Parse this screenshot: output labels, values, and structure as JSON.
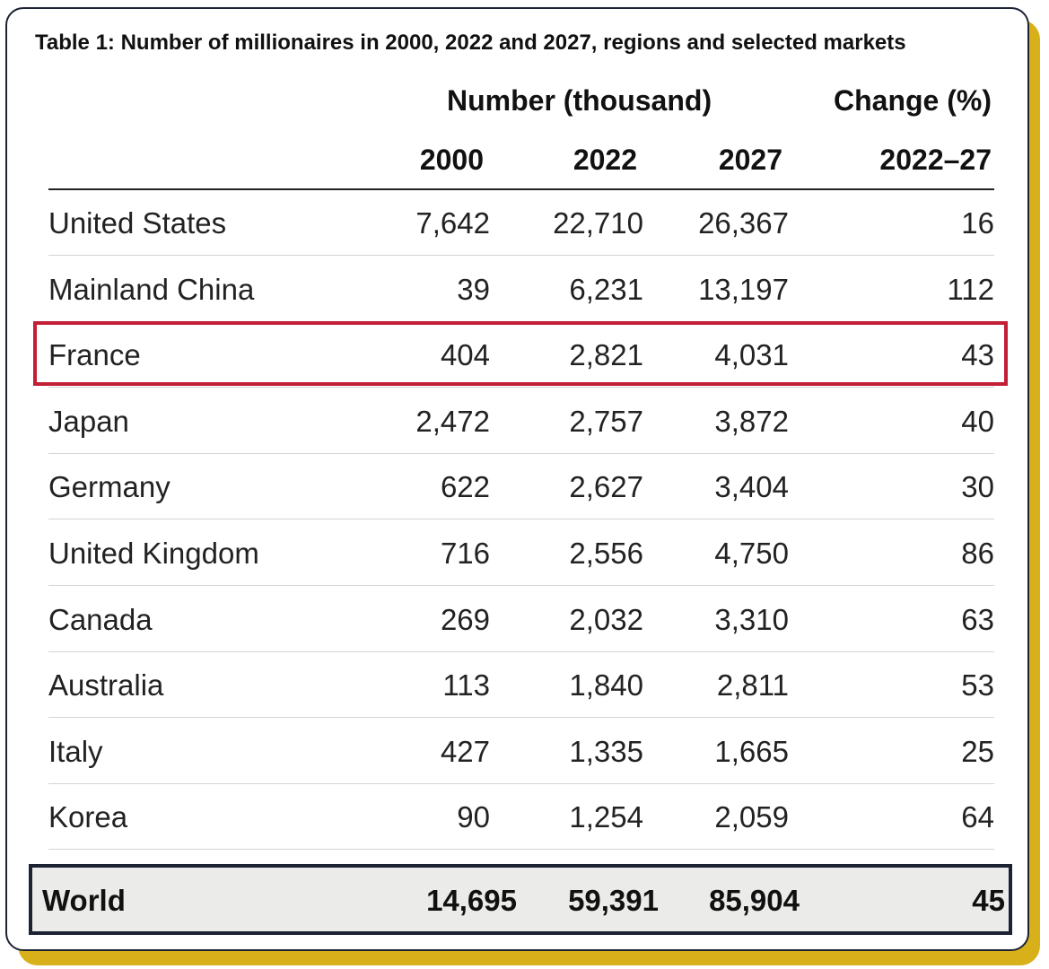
{
  "title": "Table 1: Number of millionaires in 2000, 2022 and 2027, regions and selected markets",
  "headers": {
    "group_number": "Number (thousand)",
    "group_change": "Change (%)",
    "years": [
      "2000",
      "2022",
      "2027"
    ],
    "change_period": "2022–27"
  },
  "rows": [
    {
      "name": "United States",
      "y2000": "7,642",
      "y2022": "22,710",
      "y2027": "26,367",
      "change": "16"
    },
    {
      "name": "Mainland China",
      "y2000": "39",
      "y2022": "6,231",
      "y2027": "13,197",
      "change": "112"
    },
    {
      "name": "France",
      "y2000": "404",
      "y2022": "2,821",
      "y2027": "4,031",
      "change": "43"
    },
    {
      "name": "Japan",
      "y2000": "2,472",
      "y2022": "2,757",
      "y2027": "3,872",
      "change": "40"
    },
    {
      "name": "Germany",
      "y2000": "622",
      "y2022": "2,627",
      "y2027": "3,404",
      "change": "30"
    },
    {
      "name": "United Kingdom",
      "y2000": "716",
      "y2022": "2,556",
      "y2027": "4,750",
      "change": "86"
    },
    {
      "name": "Canada",
      "y2000": "269",
      "y2022": "2,032",
      "y2027": "3,310",
      "change": "63"
    },
    {
      "name": "Australia",
      "y2000": "113",
      "y2022": "1,840",
      "y2027": "2,811",
      "change": "53"
    },
    {
      "name": "Italy",
      "y2000": "427",
      "y2022": "1,335",
      "y2027": "1,665",
      "change": "25"
    },
    {
      "name": "Korea",
      "y2000": "90",
      "y2022": "1,254",
      "y2027": "2,059",
      "change": "64"
    }
  ],
  "total": {
    "name": "World",
    "y2000": "14,695",
    "y2022": "59,391",
    "y2027": "85,904",
    "change": "45"
  },
  "highlighted_row": "France",
  "colors": {
    "highlight_border": "#c21e35",
    "total_border": "#1c2233",
    "total_background": "#ebebe9",
    "accent_shadow": "#d8b11a"
  }
}
